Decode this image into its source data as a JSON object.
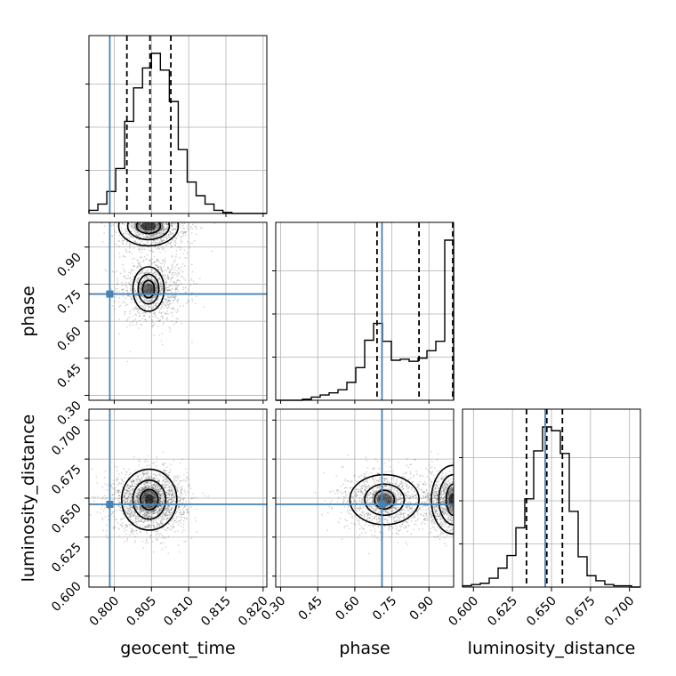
{
  "chart_data": {
    "type": "corner",
    "parameters": [
      "geocent_time",
      "phase",
      "luminosity_distance"
    ],
    "truths": {
      "geocent_time": 0.7994,
      "phase": 0.71,
      "luminosity_distance": 0.646
    },
    "colors": {
      "truth": "#4682b4",
      "histogram": "#000000",
      "grid": "#b0b0b0",
      "samples": "#555555"
    },
    "axes": {
      "geocent_time": {
        "label": "geocent_time",
        "range": [
          0.7966,
          0.8205
        ],
        "ticks": [
          0.8,
          0.805,
          0.81,
          0.815,
          0.82
        ],
        "tick_labels": [
          "0.800",
          "0.805",
          "0.810",
          "0.815",
          "0.820"
        ]
      },
      "phase": {
        "label": "phase",
        "range": [
          0.28,
          1.0
        ],
        "ticks": [
          0.3,
          0.45,
          0.6,
          0.75,
          0.9
        ],
        "tick_labels": [
          "0.30",
          "0.45",
          "0.60",
          "0.75",
          "0.90"
        ]
      },
      "luminosity_distance": {
        "label": "luminosity_distance",
        "range": [
          0.593,
          0.707
        ],
        "ticks": [
          0.6,
          0.625,
          0.65,
          0.675,
          0.7
        ],
        "tick_labels": [
          "0.600",
          "0.625",
          "0.650",
          "0.675",
          "0.700"
        ]
      }
    },
    "histograms": {
      "geocent_time": {
        "bin_edges": [
          0.7966,
          0.7978,
          0.799,
          0.8002,
          0.8014,
          0.8026,
          0.8038,
          0.805,
          0.8062,
          0.8074,
          0.8086,
          0.8098,
          0.811,
          0.8122,
          0.8134,
          0.8146,
          0.8158,
          0.817,
          0.8182,
          0.8194,
          0.8205
        ],
        "counts": [
          3,
          9,
          21,
          43,
          88,
          120,
          139,
          153,
          137,
          107,
          61,
          30,
          17,
          9,
          3,
          1,
          0,
          0,
          0,
          0
        ],
        "quantiles": [
          0.8017,
          0.8048,
          0.8076
        ]
      },
      "phase": {
        "bin_edges": [
          0.28,
          0.316,
          0.352,
          0.388,
          0.424,
          0.46,
          0.496,
          0.532,
          0.568,
          0.604,
          0.64,
          0.676,
          0.712,
          0.748,
          0.784,
          0.82,
          0.856,
          0.892,
          0.928,
          0.964,
          1.0
        ],
        "counts": [
          0,
          0,
          0,
          1,
          3,
          5,
          7,
          10,
          17,
          31,
          57,
          73,
          56,
          38,
          39,
          37,
          40,
          47,
          56,
          152
        ],
        "quantiles": [
          0.69,
          0.86,
          1.0
        ]
      },
      "luminosity_distance": {
        "bin_edges": [
          0.593,
          0.5987,
          0.6044,
          0.6101,
          0.6158,
          0.6215,
          0.6272,
          0.6329,
          0.6386,
          0.6443,
          0.65,
          0.6557,
          0.6614,
          0.6671,
          0.6728,
          0.6785,
          0.6842,
          0.6899,
          0.6956,
          0.7013,
          0.707
        ],
        "counts": [
          1,
          2,
          3,
          7,
          15,
          25,
          47,
          70,
          108,
          127,
          124,
          106,
          60,
          24,
          9,
          5,
          2,
          1,
          1,
          0
        ],
        "quantiles": [
          0.634,
          0.647,
          0.657
        ]
      }
    }
  }
}
